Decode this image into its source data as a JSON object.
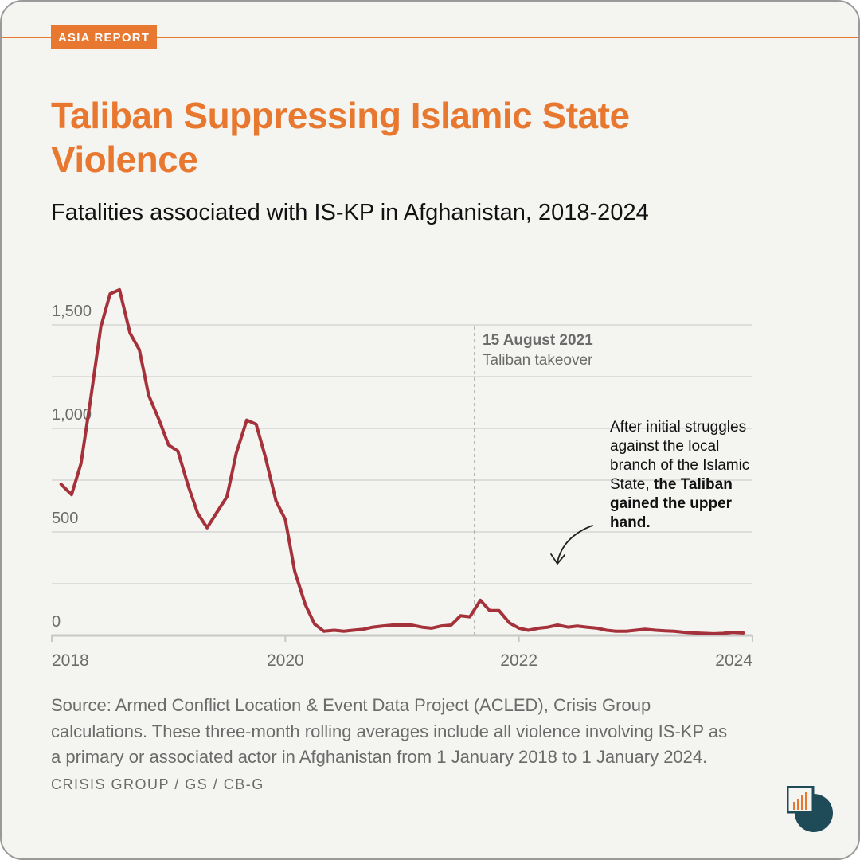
{
  "badge": "ASIA REPORT",
  "title": "Taliban Suppressing Islamic State Violence",
  "subtitle": "Fatalities associated with IS-KP in Afghanistan, 2018-2024",
  "annotation": {
    "event_date": "15 August 2021",
    "event_label": "Taliban takeover",
    "note_lines": [
      "After initial struggles",
      "against the local",
      "branch of the Islamic"
    ],
    "note_line4_plain": "State, ",
    "note_line4_bold": "the Taliban",
    "note_bold_lines": [
      "gained the upper",
      "hand."
    ]
  },
  "source": {
    "text": "Source: Armed Conflict Location & Event Data Project (ACLED), Crisis Group calculations. These three-month rolling averages include all violence involving IS-KP as a primary or associated actor in Afghanistan from 1 January 2018 to 1 January 2024.",
    "credit": "CRISIS GROUP / GS / CB-G"
  },
  "colors": {
    "accent": "#e8782f",
    "line": "#a5313a",
    "logo_dark": "#1f4a58"
  },
  "chart_data": {
    "type": "line",
    "title": "Fatalities associated with IS-KP in Afghanistan, 2018-2024",
    "xlabel": "",
    "ylabel": "",
    "xlim": [
      2018,
      2024
    ],
    "ylim": [
      0,
      1500
    ],
    "x_ticks": [
      2018,
      2020,
      2022,
      2024
    ],
    "x_tick_labels": [
      "2018",
      "2020",
      "2022",
      "2024"
    ],
    "y_ticks": [
      0,
      500,
      1000,
      1500
    ],
    "y_tick_labels": [
      "0",
      "500",
      "1,000",
      "1,500"
    ],
    "grid": true,
    "event_marker_x": 2021.62,
    "series": [
      {
        "x": [
          2018.08,
          2018.17,
          2018.25,
          2018.33,
          2018.42,
          2018.5,
          2018.58,
          2018.67,
          2018.75,
          2018.83,
          2018.92,
          2019.0,
          2019.08,
          2019.17,
          2019.25,
          2019.33,
          2019.42,
          2019.5,
          2019.58,
          2019.67,
          2019.75,
          2019.83,
          2019.92,
          2020.0,
          2020.08,
          2020.17,
          2020.25,
          2020.33,
          2020.42,
          2020.5,
          2020.58,
          2020.67,
          2020.75,
          2020.83,
          2020.92,
          2021.0,
          2021.08,
          2021.17,
          2021.25,
          2021.33,
          2021.42,
          2021.5,
          2021.58,
          2021.67,
          2021.75,
          2021.83,
          2021.92,
          2022.0,
          2022.08,
          2022.17,
          2022.25,
          2022.33,
          2022.42,
          2022.5,
          2022.58,
          2022.67,
          2022.75,
          2022.83,
          2022.92,
          2023.0,
          2023.08,
          2023.17,
          2023.25,
          2023.33,
          2023.42,
          2023.5,
          2023.58,
          2023.67,
          2023.75,
          2023.83,
          2023.92
        ],
        "y": [
          730,
          680,
          830,
          1130,
          1490,
          1650,
          1670,
          1460,
          1380,
          1160,
          1040,
          920,
          890,
          720,
          590,
          520,
          600,
          670,
          880,
          1040,
          1020,
          860,
          650,
          560,
          310,
          150,
          55,
          20,
          25,
          20,
          25,
          30,
          40,
          45,
          50,
          50,
          50,
          40,
          35,
          45,
          50,
          95,
          90,
          170,
          120,
          120,
          60,
          35,
          25,
          35,
          40,
          50,
          40,
          45,
          40,
          35,
          25,
          20,
          20,
          25,
          30,
          25,
          22,
          20,
          15,
          12,
          10,
          8,
          10,
          15,
          12
        ]
      }
    ]
  }
}
